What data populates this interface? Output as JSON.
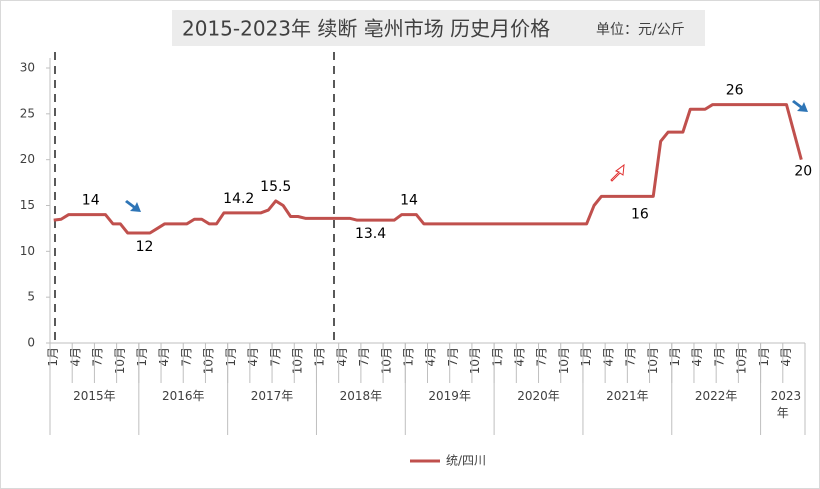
{
  "chart_data": {
    "type": "line",
    "title": "2015-2023年  续断 亳州市场 历史月价格",
    "subtitle": "单位：元/公斤",
    "categories": [
      "1月",
      null,
      null,
      "4月",
      null,
      null,
      "7月",
      null,
      null,
      "10月",
      null,
      null,
      "1月",
      null,
      null,
      "4月",
      null,
      null,
      "7月",
      null,
      null,
      "10月",
      null,
      null,
      "1月",
      null,
      null,
      "4月",
      null,
      null,
      "7月",
      null,
      null,
      "10月",
      null,
      null,
      "1月",
      null,
      null,
      "4月",
      null,
      null,
      "7月",
      null,
      null,
      "10月",
      null,
      null,
      "1月",
      null,
      null,
      "4月",
      null,
      null,
      "7月",
      null,
      null,
      "10月",
      null,
      null,
      "1月",
      null,
      null,
      "4月",
      null,
      null,
      "7月",
      null,
      null,
      "10月",
      null,
      null,
      "1月",
      null,
      null,
      "4月",
      null,
      null,
      "7月",
      null,
      null,
      "10月",
      null,
      null,
      "1月",
      null,
      null,
      "4月",
      null,
      null,
      "7月",
      null,
      null,
      "10月",
      null,
      null,
      "1月",
      null,
      null,
      "4月",
      null,
      null
    ],
    "year_groups": [
      "2015年",
      "2016年",
      "2017年",
      "2018年",
      "2019年",
      "2020年",
      "2021年",
      "2022年",
      "2023年"
    ],
    "series": [
      {
        "name": "统/四川",
        "color": "#c0504d",
        "values": [
          13.4,
          13.5,
          14,
          14,
          14,
          14,
          14,
          14,
          13,
          13,
          12,
          12,
          12,
          12,
          12.5,
          13,
          13,
          13,
          13,
          13.5,
          13.5,
          13,
          13,
          14.2,
          14.2,
          14.2,
          14.2,
          14.2,
          14.2,
          14.5,
          15.5,
          15,
          13.8,
          13.8,
          13.6,
          13.6,
          13.6,
          13.6,
          13.6,
          13.6,
          13.6,
          13.4,
          13.4,
          13.4,
          13.4,
          13.4,
          13.4,
          14,
          14,
          14,
          13,
          13,
          13,
          13,
          13,
          13,
          13,
          13,
          13,
          13,
          13,
          13,
          13,
          13,
          13,
          13,
          13,
          13,
          13,
          13,
          13,
          13,
          13,
          15,
          16,
          16,
          16,
          16,
          16,
          16,
          16,
          16,
          22,
          23,
          23,
          23,
          25.5,
          25.5,
          25.5,
          26,
          26,
          26,
          26,
          26,
          26,
          26,
          26,
          26,
          26,
          26,
          23,
          20
        ],
        "value_labels": [
          null,
          null,
          null,
          null,
          null,
          "14",
          null,
          null,
          null,
          null,
          null,
          null,
          "12",
          null,
          null,
          null,
          null,
          null,
          null,
          null,
          null,
          null,
          null,
          null,
          null,
          "14.2",
          null,
          null,
          null,
          null,
          "15.5",
          null,
          null,
          null,
          null,
          null,
          null,
          null,
          null,
          null,
          null,
          null,
          "13.4",
          null,
          null,
          null,
          null,
          null,
          "14",
          null,
          null,
          null,
          null,
          null,
          null,
          null,
          null,
          null,
          null,
          null,
          null,
          null,
          null,
          null,
          null,
          null,
          null,
          null,
          null,
          null,
          null,
          null,
          null,
          null,
          null,
          null,
          null,
          null,
          null,
          null,
          "16",
          null,
          null,
          null,
          null,
          null,
          null,
          null,
          null,
          null,
          null,
          null,
          "26",
          null,
          null,
          null,
          null,
          null,
          null,
          null,
          null,
          "20"
        ]
      }
    ],
    "ylim": [
      0,
      30
    ],
    "yticks": [
      0,
      5,
      10,
      15,
      20,
      25,
      30
    ],
    "grid": false,
    "legend": "bottom"
  }
}
